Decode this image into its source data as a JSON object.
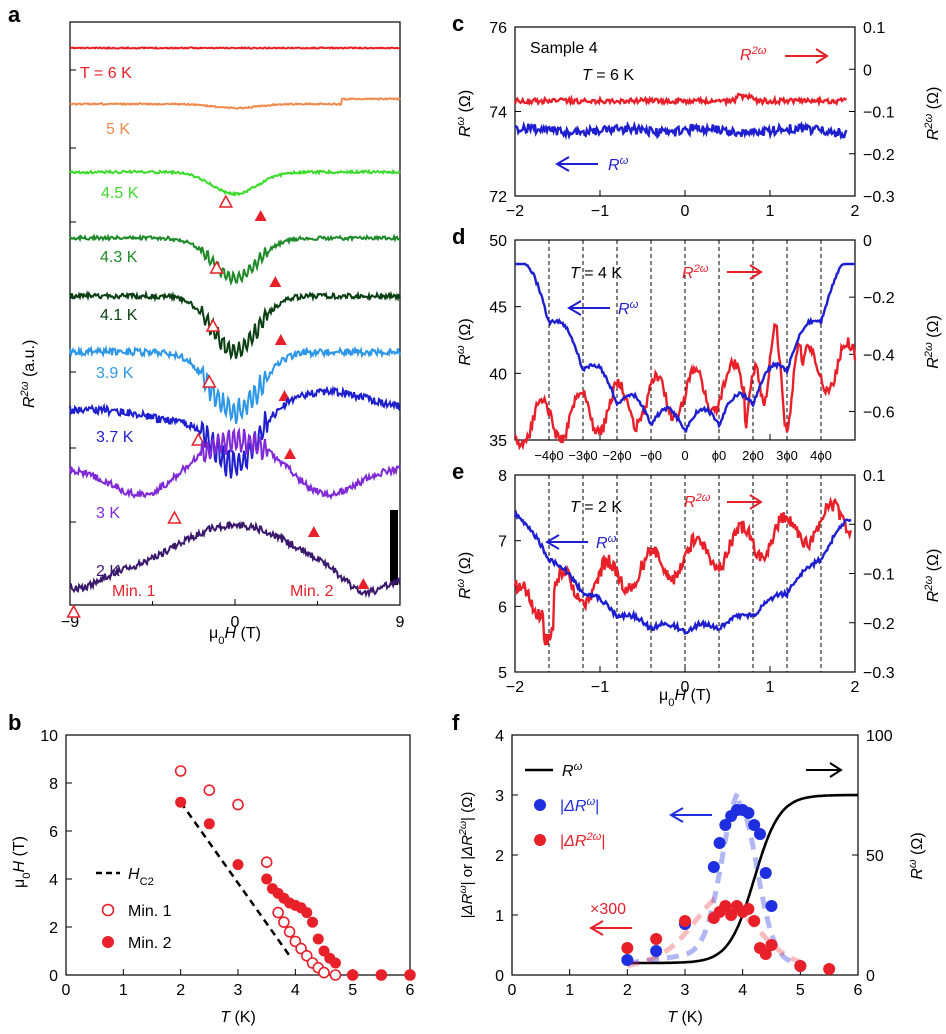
{
  "chart_data": [
    {
      "panel": "a",
      "type": "line",
      "title": "",
      "xlabel": "μ0H (T)",
      "ylabel": "R2ω (a.u.)",
      "xlim": [
        -9,
        9
      ],
      "x_ticks": [
        "−9",
        "0",
        "9"
      ],
      "annotations": [
        "Min. 1",
        "Min. 2"
      ],
      "series": [
        {
          "name": "T = 6 K",
          "label": "T = 6 K",
          "color": "#e8202a",
          "offset": 0,
          "dip_depth": 0,
          "noise": 0.6,
          "min1": null,
          "min2": null
        },
        {
          "name": "5 K",
          "label": "5 K",
          "color": "#f08a4b",
          "offset": 1,
          "dip_depth": 4,
          "noise": 0.7,
          "min1": null,
          "min2": null
        },
        {
          "name": "4.5 K",
          "label": "4.5 K",
          "color": "#3adb2a",
          "offset": 2,
          "dip_depth": 22,
          "noise": 1.2,
          "min1": -0.5,
          "min2": 1.4
        },
        {
          "name": "4.3 K",
          "label": "4.3 K",
          "color": "#1f8a2a",
          "offset": 3,
          "dip_depth": 40,
          "noise": 1.8,
          "min1": -1.0,
          "min2": 2.2
        },
        {
          "name": "4.1 K",
          "label": "4.1 K",
          "color": "#0b3f14",
          "offset": 4,
          "dip_depth": 55,
          "noise": 2.6,
          "min1": -1.2,
          "min2": 2.5
        },
        {
          "name": "3.9 K",
          "label": "3.9 K",
          "color": "#2f97e8",
          "offset": 5,
          "dip_depth": 60,
          "noise": 3.5,
          "min1": -1.4,
          "min2": 2.7
        },
        {
          "name": "3.7 K",
          "label": "3.7 K",
          "color": "#1f1fcf",
          "offset": 6,
          "dip_depth": 55,
          "noise": 4.0,
          "min1": -2.0,
          "min2": 3.0
        },
        {
          "name": "3 K",
          "label": "3 K",
          "color": "#7f2ad6",
          "offset": 7,
          "dip_depth": 55,
          "noise": 3.5,
          "min1": -3.3,
          "min2": 4.3
        },
        {
          "name": "2 K",
          "label": "2 K",
          "color": "#3b1a6e",
          "offset": 8,
          "dip_depth": 70,
          "noise": 3.5,
          "min1": -8.8,
          "min2": 7.0
        }
      ]
    },
    {
      "panel": "b",
      "type": "scatter",
      "xlabel": "T (K)",
      "ylabel": "μ0H (T)",
      "xlim": [
        0,
        6
      ],
      "ylim": [
        0,
        10
      ],
      "x_ticks": [
        0,
        1,
        2,
        3,
        4,
        5,
        6
      ],
      "y_ticks": [
        0,
        2,
        4,
        6,
        8,
        10
      ],
      "legend": [
        "HC2",
        "Min. 1",
        "Min. 2"
      ],
      "series": [
        {
          "name": "HC2",
          "style": "dashed",
          "x": [
            2.0,
            3.9
          ],
          "y": [
            7.2,
            0.8
          ]
        },
        {
          "name": "Min. 1",
          "style": "open",
          "color": "#e8202a",
          "x": [
            2.0,
            2.5,
            3.0,
            3.5,
            3.7,
            3.8,
            3.9,
            4.0,
            4.1,
            4.2,
            4.3,
            4.4,
            4.5,
            4.7,
            5.0,
            5.5,
            6.0
          ],
          "y": [
            8.5,
            7.7,
            7.1,
            4.7,
            2.6,
            2.2,
            1.8,
            1.4,
            1.1,
            0.8,
            0.5,
            0.3,
            0.1,
            0.0,
            0.0,
            0.0,
            0.0
          ]
        },
        {
          "name": "Min. 2",
          "style": "filled",
          "color": "#e8202a",
          "x": [
            2.0,
            2.5,
            3.0,
            3.5,
            3.6,
            3.7,
            3.8,
            3.9,
            4.0,
            4.1,
            4.2,
            4.3,
            4.4,
            4.5,
            4.6,
            4.7,
            5.0,
            5.5,
            6.0
          ],
          "y": [
            7.2,
            6.3,
            4.6,
            4.0,
            3.6,
            3.4,
            3.2,
            3.0,
            2.9,
            2.8,
            2.6,
            2.2,
            1.5,
            1.0,
            0.7,
            0.5,
            0.0,
            0.0,
            0.0
          ]
        }
      ]
    },
    {
      "panel": "c",
      "type": "line",
      "xlim": [
        -2,
        2
      ],
      "x_ticks": [
        "−2",
        "−1",
        "0",
        "1",
        "2"
      ],
      "ylabel_left": "Rω (Ω)",
      "ylabel_right": "R2ω (Ω)",
      "ylim_left": [
        72,
        76
      ],
      "y_ticks_left": [
        72,
        74,
        76
      ],
      "ylim_right": [
        -0.3,
        0.1
      ],
      "y_ticks_right": [
        "−0.3",
        "−0.2",
        "−0.1",
        "0",
        "0.1"
      ],
      "annotations": [
        "Sample 4",
        "T = 6 K",
        "R2ω",
        "Rω"
      ],
      "series": [
        {
          "name": "R2ω",
          "axis": "right",
          "color": "#e8202a",
          "base": -0.075,
          "amp": 0.006
        },
        {
          "name": "Rω",
          "axis": "left",
          "color": "#1f1fcf",
          "base": 73.55,
          "amp": 0.08
        }
      ]
    },
    {
      "panel": "d",
      "type": "line",
      "xlim": [
        -2,
        2
      ],
      "ylabel_left": "Rω (Ω)",
      "ylabel_right": "R2ω (Ω)",
      "ylim_left": [
        35,
        50
      ],
      "y_ticks_left": [
        35,
        40,
        45,
        50
      ],
      "ylim_right": [
        -0.7,
        0
      ],
      "y_ticks_right": [
        "−0.6",
        "−0.4",
        "−0.2",
        "0"
      ],
      "flux_labels": [
        "−4ϕ0",
        "−3ϕ0",
        "−2ϕ0",
        "−ϕ0",
        "0",
        "ϕ0",
        "2ϕ0",
        "3ϕ0",
        "4ϕ0"
      ],
      "flux_positions": [
        -1.6,
        -1.2,
        -0.8,
        -0.4,
        0,
        0.4,
        0.8,
        1.2,
        1.6
      ],
      "annotations": [
        "T = 4 K",
        "R2ω",
        "Rω"
      ],
      "series": [
        {
          "name": "R2ω",
          "axis": "right",
          "color": "#e8202a"
        },
        {
          "name": "Rω",
          "axis": "left",
          "color": "#1f1fcf",
          "min": 35.2,
          "max": 48.0
        }
      ]
    },
    {
      "panel": "e",
      "type": "line",
      "xlim": [
        -2,
        2
      ],
      "x_ticks": [
        "−2",
        "−1",
        "0",
        "1",
        "2"
      ],
      "xlabel": "μ0H (T)",
      "ylabel_left": "Rω (Ω)",
      "ylabel_right": "R2ω (Ω)",
      "ylim_left": [
        5,
        8
      ],
      "y_ticks_left": [
        5,
        6,
        7,
        8
      ],
      "ylim_right": [
        -0.3,
        0.1
      ],
      "y_ticks_right": [
        "−0.3",
        "−0.2",
        "−0.1",
        "0",
        "0.1"
      ],
      "annotations": [
        "T = 2 K",
        "R2ω",
        "Rω"
      ],
      "series": [
        {
          "name": "R2ω",
          "axis": "right",
          "color": "#e8202a"
        },
        {
          "name": "Rω",
          "axis": "left",
          "color": "#1f1fcf",
          "min": 5.6,
          "max": 7.5
        }
      ]
    },
    {
      "panel": "f",
      "type": "scatter",
      "xlabel": "T (K)",
      "ylabel_left": "|ΔRω| or |ΔR2ω| (Ω)",
      "ylabel_right": "Rω (Ω)",
      "xlim": [
        0,
        6
      ],
      "ylim_left": [
        0,
        4
      ],
      "ylim_right": [
        0,
        100
      ],
      "x_ticks": [
        0,
        1,
        2,
        3,
        4,
        5,
        6
      ],
      "y_ticks_left": [
        0,
        1,
        2,
        3,
        4
      ],
      "y_ticks_right": [
        0,
        50,
        100
      ],
      "legend": [
        "Rω",
        "|ΔRω|",
        "|ΔR2ω|"
      ],
      "annotations": [
        "×300"
      ],
      "series": [
        {
          "name": "Rω",
          "axis": "right",
          "color": "#000000",
          "x": [
            2.0,
            2.5,
            3.0,
            3.5,
            3.8,
            4.0,
            4.2,
            4.4,
            4.6,
            4.8,
            5.0,
            5.5,
            6.0
          ],
          "y": [
            5,
            6,
            9,
            15,
            22,
            30,
            42,
            55,
            65,
            71,
            74,
            75,
            75
          ]
        },
        {
          "name": "|ΔRω|",
          "axis": "left",
          "color": "#1f2fe0",
          "x": [
            2.0,
            2.5,
            3.0,
            3.5,
            3.6,
            3.7,
            3.8,
            3.9,
            4.0,
            4.1,
            4.2,
            4.3,
            4.4,
            4.5,
            5.0
          ],
          "y": [
            0.25,
            0.4,
            0.85,
            1.8,
            2.2,
            2.5,
            2.65,
            2.75,
            2.75,
            2.7,
            2.5,
            2.35,
            1.7,
            1.15,
            0.15
          ]
        },
        {
          "name": "|ΔR2ω|",
          "axis": "left",
          "color": "#e8202a",
          "x": [
            2.0,
            2.5,
            3.0,
            3.5,
            3.6,
            3.7,
            3.8,
            3.9,
            4.0,
            4.1,
            4.2,
            4.3,
            4.4,
            4.5,
            5.0,
            5.5
          ],
          "y": [
            0.45,
            0.6,
            0.9,
            0.95,
            1.05,
            1.15,
            1.0,
            1.15,
            1.05,
            1.1,
            0.9,
            0.45,
            0.35,
            0.5,
            0.15,
            0.1
          ]
        }
      ]
    }
  ],
  "panel_labels": [
    "a",
    "b",
    "c",
    "d",
    "e",
    "f"
  ],
  "text": {
    "a_xlabel": "μ0H (T)",
    "b_xlabel": "T (K)",
    "e_xlabel": "μ0H (T)",
    "f_xlabel": "T (K)"
  }
}
